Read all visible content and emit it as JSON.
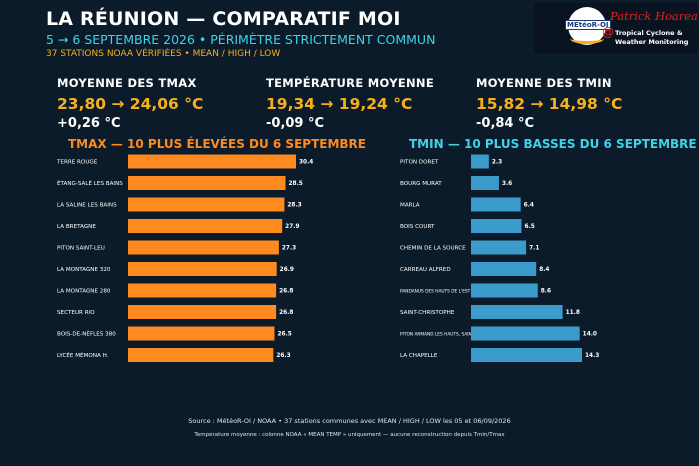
{
  "header": {
    "title": "LA RÉUNION — COMPARATIF MOI",
    "subtitle": "5 → 6 SEPTEMBRE 2026 • PÉRIMÈTRE STRICTEMENT COMMUN",
    "note": "37 STATIONS NOAA VÉRIFIÉES • MEAN / HIGH / LOW"
  },
  "logo": {
    "badge": "MÉtéoR-OI",
    "name": "Patrick Hoareau",
    "line1": "Tropical Cyclone &",
    "line2": "Weather Monitoring"
  },
  "stats": [
    {
      "label": "MOYENNE DES TMAX",
      "value": "23,80 → 24,06 °C",
      "delta": "+0,26 °C"
    },
    {
      "label": "TEMPÉRATURE MOYENNE",
      "value": "19,34 → 19,24 °C",
      "delta": "-0,09 °C"
    },
    {
      "label": "MOYENNE DES TMIN",
      "value": "15,82 → 14,98 °C",
      "delta": "-0,84 °C"
    }
  ],
  "colors": {
    "background": "#0c1b2a",
    "tmax_bar": "#ff8a1f",
    "tmin_bar": "#3b9ccc",
    "accent": "#f6b01e",
    "cyan": "#3fd3e8"
  },
  "chart_data": [
    {
      "type": "bar",
      "orientation": "horizontal",
      "title": "TMAX — 10 PLUS ÉLEVÉES DU 6 SEPTEMBRE",
      "categories": [
        "TERRE ROUGE",
        "ÉTANG-SALÉ LES BAINS",
        "LA SALINE LES BAINS",
        "LA BRETAGNE",
        "PITON SAINT-LEU",
        "LA MONTAGNE 320",
        "LA MONTAGNE 280",
        "SECTEUR RIO",
        "BOIS-DE-NÈFLES 380",
        "LYCÉE MÉMONA H."
      ],
      "values": [
        30.4,
        28.5,
        28.3,
        27.9,
        27.3,
        26.9,
        26.8,
        26.8,
        26.5,
        26.3
      ],
      "labels": [
        "30.4",
        "28.5",
        "28.3",
        "27.9",
        "27.3",
        "26.9",
        "26.8",
        "26.8",
        "26.5",
        "26.3"
      ],
      "xlim": [
        0,
        30.4
      ]
    },
    {
      "type": "bar",
      "orientation": "horizontal",
      "title": "TMIN — 10 PLUS BASSES DU 6 SEPTEMBRE",
      "categories": [
        "PITON DORET",
        "BOURG MURAT",
        "MARLA",
        "BOIS COURT",
        "CHEMIN DE LA SOURCE",
        "CARREAU ALFRED",
        "PANDANUS DES HAUTS DE L'EST",
        "SAINT-CHRISTOPHE",
        "PITON ARMAND LES HAUTS, SAINT",
        "LA CHAPELLE"
      ],
      "values": [
        2.3,
        3.6,
        6.4,
        6.5,
        7.1,
        8.4,
        8.6,
        11.8,
        14.0,
        14.3
      ],
      "labels": [
        "2.3",
        "3.6",
        "6.4",
        "6.5",
        "7.1",
        "8.4",
        "8.6",
        "11.8",
        "14.0",
        "14.3"
      ],
      "xlim": [
        0,
        14.3
      ]
    }
  ],
  "footer": {
    "line1": "Source : MétéoR-OI / NOAA • 37 stations communes avec MEAN / HIGH / LOW les 05 et 06/09/2026",
    "line2": "Température moyenne : colonne NOAA « MEAN TEMP » uniquement — aucune reconstruction depuis Tmin/Tmax"
  }
}
